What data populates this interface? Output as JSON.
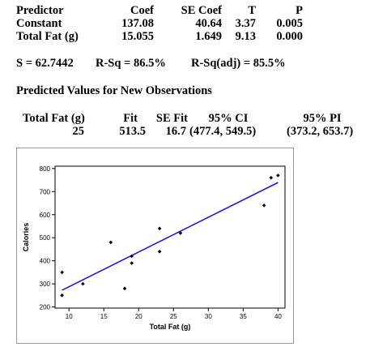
{
  "regression_table": {
    "headers": [
      "Predictor",
      "Coef",
      "SE Coef",
      "T",
      "P"
    ],
    "rows": [
      [
        "Constant",
        "137.08",
        "40.64",
        "3.37",
        "0.005"
      ],
      [
        "Total Fat (g)",
        "15.055",
        "1.649",
        "9.13",
        "0.000"
      ]
    ]
  },
  "fit_stats": {
    "s": "S = 62.7442",
    "rsq": "R-Sq = 86.5%",
    "rsq_adj": "R-Sq(adj) = 85.5%"
  },
  "prediction": {
    "title": "Predicted Values for New Observations",
    "headers": [
      "Total Fat (g)",
      "Fit",
      "SE Fit",
      "95% CI",
      "95% PI"
    ],
    "values": [
      "25",
      "513.5",
      "16.7",
      "(477.4, 549.5)",
      "(373.2, 653.7)"
    ]
  },
  "chart_data": {
    "type": "scatter",
    "xlabel": "Total Fat (g)",
    "ylabel": "Calories",
    "xlim": [
      8,
      41
    ],
    "ylim": [
      195,
      810
    ],
    "xticks": [
      10,
      15,
      20,
      25,
      30,
      35,
      40
    ],
    "yticks": [
      200,
      300,
      400,
      500,
      600,
      700,
      800
    ],
    "points": [
      {
        "x": 9,
        "y": 350
      },
      {
        "x": 9,
        "y": 250
      },
      {
        "x": 12,
        "y": 300
      },
      {
        "x": 16,
        "y": 480
      },
      {
        "x": 18,
        "y": 280
      },
      {
        "x": 19,
        "y": 420
      },
      {
        "x": 19,
        "y": 390
      },
      {
        "x": 23,
        "y": 540
      },
      {
        "x": 23,
        "y": 440
      },
      {
        "x": 26,
        "y": 520
      },
      {
        "x": 38,
        "y": 640
      },
      {
        "x": 39,
        "y": 760
      },
      {
        "x": 40,
        "y": 770
      }
    ],
    "fit_line": {
      "intercept": 137.08,
      "slope": 15.055,
      "x_range": [
        9,
        40
      ]
    },
    "colors": {
      "points": "#000000",
      "fit_line": "#1a1adb"
    },
    "grid": false
  }
}
